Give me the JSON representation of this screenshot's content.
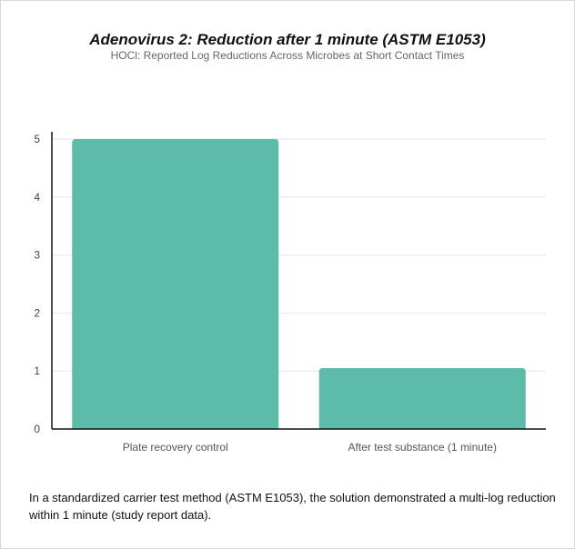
{
  "chart_data": {
    "type": "bar",
    "title": "Adenovirus 2: Reduction after 1 minute (ASTM E1053)",
    "subtitle": "HOCl: Reported Log Reductions Across Microbes at Short Contact Times",
    "categories": [
      "Plate recovery control",
      "After test substance (1 minute)"
    ],
    "values": [
      5.0,
      1.05
    ],
    "xlabel": "",
    "ylabel": "",
    "ylim": [
      0,
      5
    ],
    "yticks": [
      "0",
      "1",
      "2",
      "3",
      "4",
      "5"
    ],
    "grid": true,
    "legend": "none",
    "bar_color": "#5dbba9"
  },
  "caption": "In a standardized carrier test method (ASTM E1053), the solution demonstrated a multi-log reduction within 1 minute (study report data)."
}
